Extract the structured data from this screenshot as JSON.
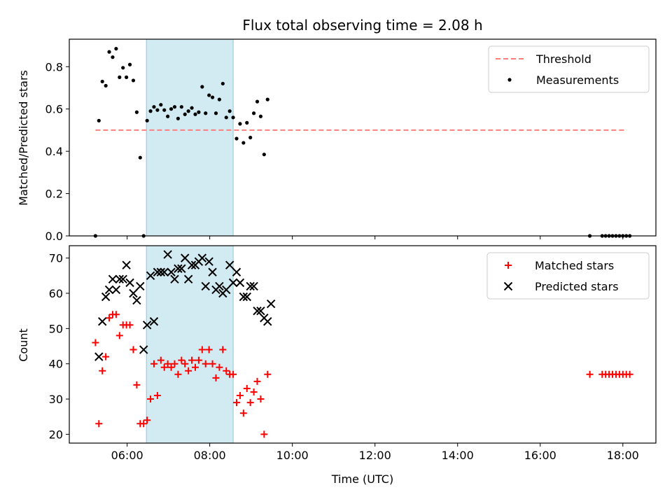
{
  "figure": {
    "title": "Flux total observing time = 2.08 h",
    "xlabel": "Time (UTC)"
  },
  "colors": {
    "measurement": "#000000",
    "threshold": "#ff7f7f",
    "matched": "#ff0000",
    "predicted": "#000000",
    "band_fill": "#add8e6",
    "band_edge": "#8fc6d8"
  },
  "chart_data": [
    {
      "type": "scatter",
      "ylabel": "Matched/Predicted stars",
      "xlim": [
        "04:36",
        "18:48"
      ],
      "ylim": [
        0,
        0.93
      ],
      "x_ticks": [
        "06:00",
        "08:00",
        "10:00",
        "12:00",
        "14:00",
        "16:00",
        "18:00"
      ],
      "y_ticks": [
        "0.0",
        "0.2",
        "0.4",
        "0.6",
        "0.8"
      ],
      "highlight_band": {
        "from": "06:28",
        "to": "08:34"
      },
      "legend": {
        "placement": "upper right",
        "entries": [
          "Threshold",
          "Measurements"
        ]
      },
      "threshold": {
        "name": "Threshold",
        "y": 0.5,
        "x_from": "05:14",
        "x_to": "18:06",
        "style": "dashed"
      },
      "series": [
        {
          "name": "Measurements",
          "marker": "dot",
          "points": [
            [
              "05:14",
              0.0
            ],
            [
              "05:19",
              0.545
            ],
            [
              "05:24",
              0.73
            ],
            [
              "05:29",
              0.71
            ],
            [
              "05:34",
              0.87
            ],
            [
              "05:39",
              0.845
            ],
            [
              "05:44",
              0.885
            ],
            [
              "05:49",
              0.75
            ],
            [
              "05:54",
              0.795
            ],
            [
              "05:59",
              0.75
            ],
            [
              "06:04",
              0.81
            ],
            [
              "06:09",
              0.735
            ],
            [
              "06:14",
              0.585
            ],
            [
              "06:19",
              0.37
            ],
            [
              "06:24",
              0.0
            ],
            [
              "06:29",
              0.545
            ],
            [
              "06:34",
              0.59
            ],
            [
              "06:39",
              0.61
            ],
            [
              "06:44",
              0.595
            ],
            [
              "06:49",
              0.62
            ],
            [
              "06:54",
              0.595
            ],
            [
              "06:59",
              0.565
            ],
            [
              "07:04",
              0.6
            ],
            [
              "07:09",
              0.61
            ],
            [
              "07:14",
              0.555
            ],
            [
              "07:19",
              0.61
            ],
            [
              "07:24",
              0.575
            ],
            [
              "07:29",
              0.59
            ],
            [
              "07:34",
              0.605
            ],
            [
              "07:39",
              0.575
            ],
            [
              "07:44",
              0.585
            ],
            [
              "07:49",
              0.705
            ],
            [
              "07:54",
              0.58
            ],
            [
              "07:59",
              0.665
            ],
            [
              "08:04",
              0.655
            ],
            [
              "08:09",
              0.58
            ],
            [
              "08:14",
              0.645
            ],
            [
              "08:19",
              0.72
            ],
            [
              "08:24",
              0.56
            ],
            [
              "08:29",
              0.59
            ],
            [
              "08:34",
              0.56
            ],
            [
              "08:39",
              0.46
            ],
            [
              "08:44",
              0.53
            ],
            [
              "08:49",
              0.44
            ],
            [
              "08:54",
              0.535
            ],
            [
              "08:59",
              0.465
            ],
            [
              "09:04",
              0.58
            ],
            [
              "09:09",
              0.635
            ],
            [
              "09:14",
              0.565
            ],
            [
              "09:19",
              0.385
            ],
            [
              "09:24",
              0.645
            ],
            [
              "17:12",
              0.0
            ],
            [
              "17:30",
              0.0
            ],
            [
              "17:35",
              0.0
            ],
            [
              "17:40",
              0.0
            ],
            [
              "17:45",
              0.0
            ],
            [
              "17:50",
              0.0
            ],
            [
              "17:55",
              0.0
            ],
            [
              "18:00",
              0.0
            ],
            [
              "18:05",
              0.0
            ],
            [
              "18:10",
              0.0
            ]
          ]
        }
      ]
    },
    {
      "type": "scatter",
      "ylabel": "Count",
      "xlim": [
        "04:36",
        "18:48"
      ],
      "ylim": [
        17.5,
        73.5
      ],
      "x_ticks": [
        "06:00",
        "08:00",
        "10:00",
        "12:00",
        "14:00",
        "16:00",
        "18:00"
      ],
      "y_ticks": [
        "20",
        "30",
        "40",
        "50",
        "60",
        "70"
      ],
      "highlight_band": {
        "from": "06:28",
        "to": "08:34"
      },
      "legend": {
        "placement": "upper right",
        "entries": [
          "Matched stars",
          "Predicted stars"
        ]
      },
      "series": [
        {
          "name": "Matched stars",
          "marker": "plus",
          "points": [
            [
              "05:14",
              46
            ],
            [
              "05:19",
              23
            ],
            [
              "05:24",
              38
            ],
            [
              "05:29",
              42
            ],
            [
              "05:34",
              53
            ],
            [
              "05:39",
              54
            ],
            [
              "05:44",
              54
            ],
            [
              "05:49",
              48
            ],
            [
              "05:54",
              51
            ],
            [
              "05:59",
              51
            ],
            [
              "06:04",
              51
            ],
            [
              "06:09",
              44
            ],
            [
              "06:14",
              34
            ],
            [
              "06:19",
              23
            ],
            [
              "06:24",
              23
            ],
            [
              "06:29",
              24
            ],
            [
              "06:34",
              30
            ],
            [
              "06:39",
              40
            ],
            [
              "06:44",
              31
            ],
            [
              "06:49",
              41
            ],
            [
              "06:54",
              39
            ],
            [
              "06:59",
              40
            ],
            [
              "07:04",
              39
            ],
            [
              "07:09",
              40
            ],
            [
              "07:14",
              37
            ],
            [
              "07:19",
              41
            ],
            [
              "07:24",
              40
            ],
            [
              "07:29",
              38
            ],
            [
              "07:34",
              41
            ],
            [
              "07:39",
              39
            ],
            [
              "07:44",
              41
            ],
            [
              "07:49",
              44
            ],
            [
              "07:54",
              40
            ],
            [
              "07:59",
              44
            ],
            [
              "08:04",
              40
            ],
            [
              "08:09",
              36
            ],
            [
              "08:14",
              39
            ],
            [
              "08:19",
              44
            ],
            [
              "08:24",
              38
            ],
            [
              "08:29",
              37
            ],
            [
              "08:34",
              37
            ],
            [
              "08:39",
              29
            ],
            [
              "08:44",
              31
            ],
            [
              "08:49",
              26
            ],
            [
              "08:54",
              33
            ],
            [
              "08:59",
              29
            ],
            [
              "09:04",
              32
            ],
            [
              "09:09",
              35
            ],
            [
              "09:14",
              30
            ],
            [
              "09:19",
              20
            ],
            [
              "09:24",
              37
            ],
            [
              "17:12",
              37
            ],
            [
              "17:30",
              37
            ],
            [
              "17:35",
              37
            ],
            [
              "17:40",
              37
            ],
            [
              "17:45",
              37
            ],
            [
              "17:50",
              37
            ],
            [
              "17:55",
              37
            ],
            [
              "18:00",
              37
            ],
            [
              "18:05",
              37
            ],
            [
              "18:10",
              37
            ]
          ]
        },
        {
          "name": "Predicted stars",
          "marker": "x",
          "points": [
            [
              "05:19",
              42
            ],
            [
              "05:24",
              52
            ],
            [
              "05:29",
              59
            ],
            [
              "05:34",
              61
            ],
            [
              "05:39",
              64
            ],
            [
              "05:44",
              61
            ],
            [
              "05:49",
              64
            ],
            [
              "05:54",
              64
            ],
            [
              "05:59",
              68
            ],
            [
              "06:04",
              63
            ],
            [
              "06:09",
              60
            ],
            [
              "06:14",
              58
            ],
            [
              "06:19",
              62
            ],
            [
              "06:24",
              44
            ],
            [
              "06:29",
              51
            ],
            [
              "06:34",
              65
            ],
            [
              "06:39",
              52
            ],
            [
              "06:44",
              66
            ],
            [
              "06:49",
              66
            ],
            [
              "06:54",
              66
            ],
            [
              "06:59",
              71
            ],
            [
              "07:04",
              66
            ],
            [
              "07:09",
              64
            ],
            [
              "07:14",
              67
            ],
            [
              "07:19",
              67
            ],
            [
              "07:24",
              70
            ],
            [
              "07:29",
              64
            ],
            [
              "07:34",
              68
            ],
            [
              "07:39",
              68
            ],
            [
              "07:44",
              69
            ],
            [
              "07:49",
              70
            ],
            [
              "07:54",
              62
            ],
            [
              "07:59",
              69
            ],
            [
              "08:04",
              66
            ],
            [
              "08:09",
              61
            ],
            [
              "08:14",
              62
            ],
            [
              "08:19",
              60
            ],
            [
              "08:24",
              61
            ],
            [
              "08:29",
              68
            ],
            [
              "08:34",
              63
            ],
            [
              "08:39",
              66
            ],
            [
              "08:44",
              63
            ],
            [
              "08:49",
              59
            ],
            [
              "08:54",
              59
            ],
            [
              "08:59",
              62
            ],
            [
              "09:04",
              62
            ],
            [
              "09:09",
              55
            ],
            [
              "09:14",
              55
            ],
            [
              "09:19",
              53
            ],
            [
              "09:24",
              52
            ],
            [
              "09:29",
              57
            ]
          ]
        }
      ]
    }
  ]
}
